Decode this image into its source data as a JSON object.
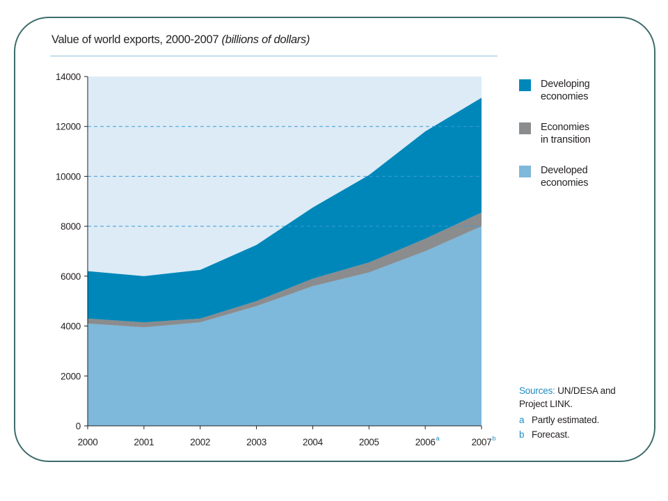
{
  "title": {
    "main": "Value of world exports, 2000-2007",
    "unit": "(billions of dollars)"
  },
  "colors": {
    "background": "#dcebf6",
    "developing": "#0087b9",
    "transition": "#8b8c8e",
    "developed": "#7eb8da",
    "gridline": "#3a9bd8"
  },
  "legend": [
    {
      "key": "developing",
      "lines": [
        "Developing",
        "economies"
      ]
    },
    {
      "key": "transition",
      "lines": [
        "Economies",
        "in transition"
      ]
    },
    {
      "key": "developed",
      "lines": [
        "Developed",
        "economies"
      ]
    }
  ],
  "notes": {
    "sources_label": "Sources:",
    "sources_text_1": "UN/DESA and",
    "sources_text_2": "Project LINK.",
    "notes": [
      {
        "mark": "a",
        "text": "Partly estimated."
      },
      {
        "mark": "b",
        "text": "Forecast."
      }
    ]
  },
  "chart_data": {
    "type": "area",
    "stacked": true,
    "x": [
      "2000",
      "2001",
      "2002",
      "2003",
      "2004",
      "2005",
      "2006",
      "2007"
    ],
    "x_superscripts": [
      "",
      "",
      "",
      "",
      "",
      "",
      "a",
      "b"
    ],
    "ylim": [
      0,
      14000
    ],
    "yticks": [
      0,
      2000,
      4000,
      6000,
      8000,
      10000,
      12000,
      14000
    ],
    "gridlines": [
      8000,
      10000,
      12000
    ],
    "grid": "dashed, selected levels",
    "legend_position": "right",
    "series": [
      {
        "name": "Developed economies",
        "key": "developed",
        "values": [
          4100,
          3950,
          4150,
          4800,
          5600,
          6150,
          7000,
          8000
        ]
      },
      {
        "name": "Economies in transition",
        "key": "transition",
        "values": [
          200,
          200,
          150,
          200,
          300,
          400,
          500,
          550
        ]
      },
      {
        "name": "Developing economies",
        "key": "developing",
        "values": [
          1900,
          1850,
          1950,
          2250,
          2850,
          3500,
          4300,
          4600
        ]
      }
    ]
  }
}
